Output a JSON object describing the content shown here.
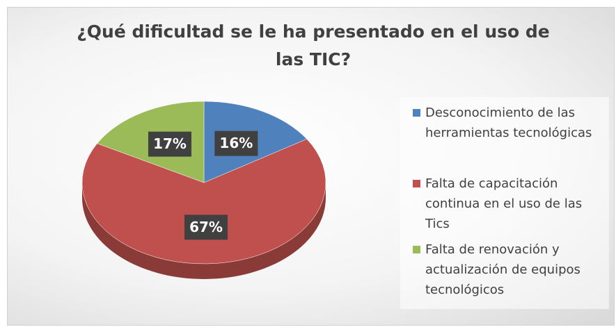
{
  "chart_data": {
    "type": "pie",
    "title": "¿Qué dificultad se le ha presentado en el uso de las TIC?",
    "categories": [
      "Desconocimiento de las herramientas tecnológicas",
      "Falta de capacitación continua en el uso de las Tics",
      "Falta de renovación y actualización de equipos tecnológicos"
    ],
    "values": [
      16,
      67,
      17
    ],
    "value_labels": [
      "16%",
      "67%",
      "17%"
    ],
    "colors": [
      "#4f81bd",
      "#c0504d",
      "#9bbb59"
    ],
    "legend": "right"
  }
}
